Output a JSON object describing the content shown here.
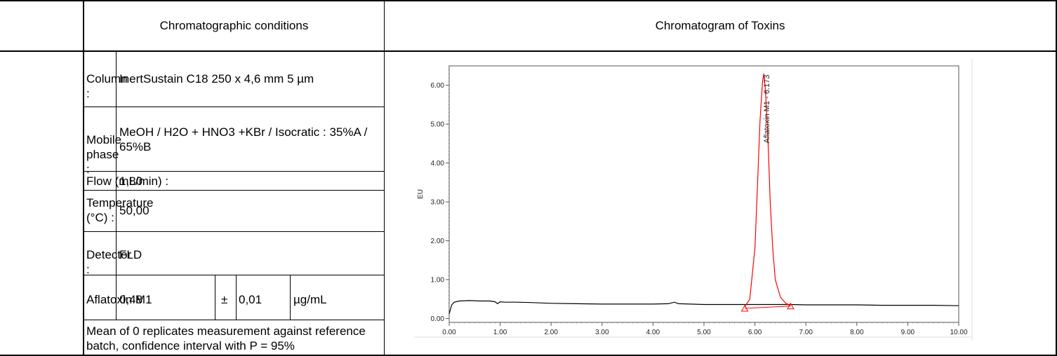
{
  "left_panel": {
    "header": "Chromatographic conditions",
    "rows": [
      {
        "label": "Column :",
        "value": "InertSustain C18 250 x 4,6 mm 5 µm"
      },
      {
        "label": "Mobile phase :",
        "value": "MeOH / H2O + HNO3 +KBr / Isocratic : 35%A / 65%B"
      },
      {
        "label": "Flow (mL/min) :",
        "value": "1,80"
      },
      {
        "label": "Temperature (°C) :",
        "value": "50,00"
      },
      {
        "label": "Detector :",
        "value": "FLD"
      }
    ],
    "result": {
      "label": "Aflatoxin M1",
      "value": "0,48",
      "pm": "±",
      "uncertainty": "0,01",
      "unit": "µg/mL"
    },
    "footnote": "Mean of 0 replicates measurement against reference batch, confidence interval with P = 95%"
  },
  "right_panel": {
    "header": "Chromatogram of Toxins"
  },
  "chart_data": {
    "type": "line",
    "title": "",
    "xlabel": "",
    "ylabel": "EU",
    "xlim": [
      0,
      10
    ],
    "ylim": [
      -0.1,
      6.5
    ],
    "xticks": [
      "0.00",
      "1.00",
      "2.00",
      "3.00",
      "4.00",
      "5.00",
      "6.00",
      "7.00",
      "8.00",
      "9.00",
      "10.00"
    ],
    "yticks": [
      "0.00",
      "1.00",
      "2.00",
      "3.00",
      "4.00",
      "5.00",
      "6.00"
    ],
    "series": [
      {
        "color": "#000000",
        "x": [
          0.0,
          0.05,
          0.1,
          0.2,
          0.4,
          0.6,
          0.8,
          0.9,
          0.95,
          1.0,
          1.1,
          1.3,
          1.6,
          2.0,
          2.5,
          3.0,
          3.5,
          4.0,
          4.3,
          4.42,
          4.5,
          5.0,
          5.5,
          5.8,
          6.7,
          7.0,
          7.5,
          8.0,
          8.5,
          9.0,
          9.5,
          10.0
        ],
        "y": [
          0.12,
          0.35,
          0.42,
          0.45,
          0.46,
          0.45,
          0.45,
          0.43,
          0.38,
          0.43,
          0.42,
          0.42,
          0.41,
          0.39,
          0.38,
          0.37,
          0.37,
          0.37,
          0.38,
          0.42,
          0.38,
          0.36,
          0.36,
          0.36,
          0.36,
          0.35,
          0.35,
          0.35,
          0.34,
          0.34,
          0.34,
          0.33
        ]
      },
      {
        "name": "Aflatoxin M1 - 6.173",
        "color": "#ff0000",
        "x": [
          5.8,
          5.9,
          6.0,
          6.05,
          6.1,
          6.15,
          6.173,
          6.2,
          6.25,
          6.3,
          6.35,
          6.4,
          6.5,
          6.6,
          6.7
        ],
        "y": [
          0.3,
          0.5,
          1.8,
          3.4,
          5.1,
          6.1,
          6.3,
          6.0,
          4.8,
          3.0,
          1.8,
          1.0,
          0.55,
          0.4,
          0.32
        ]
      }
    ],
    "baseline": {
      "x": [
        5.8,
        6.7
      ],
      "y": [
        0.26,
        0.32
      ],
      "color": "#ff0000"
    },
    "peak_markers": [
      {
        "x": 5.8,
        "y": 0.26
      },
      {
        "x": 6.7,
        "y": 0.32
      }
    ],
    "annotations": [
      {
        "text": "Aflatoxin M1 - 6.173",
        "x": 6.173,
        "y": 6.2,
        "rotation": -90
      }
    ]
  }
}
